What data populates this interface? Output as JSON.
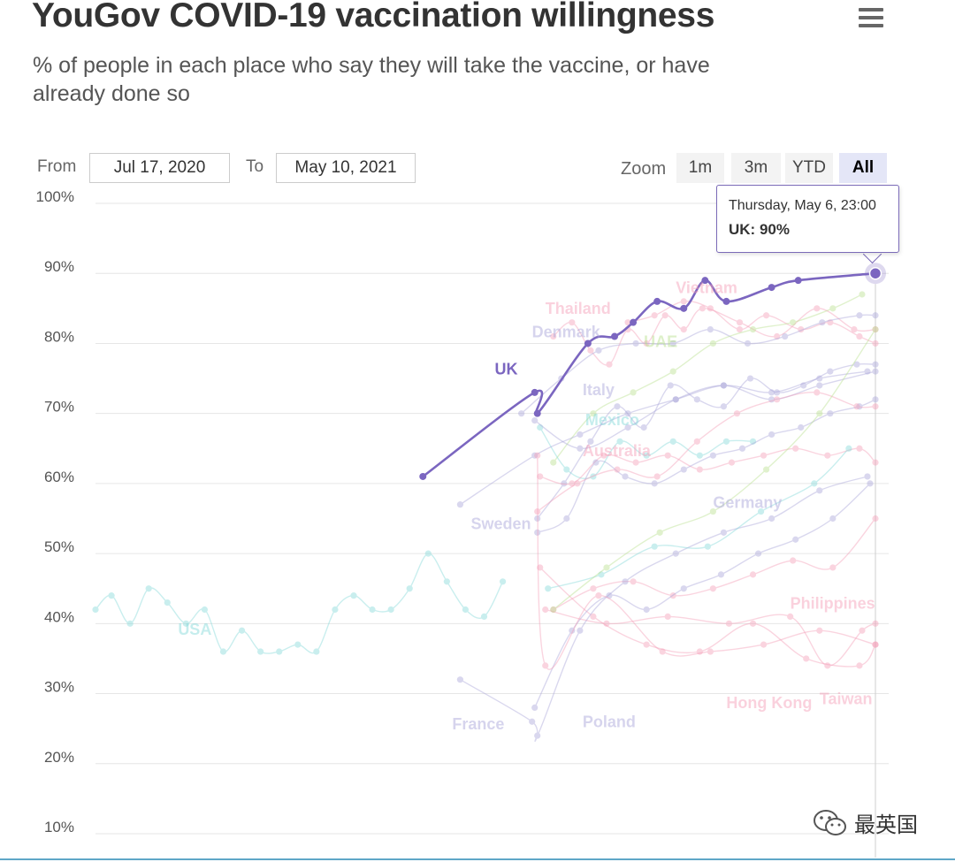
{
  "header": {
    "title": "YouGov COVID-19 vaccination willingness",
    "subtitle": "% of people in each place who say they will take the vaccine, or have already done so"
  },
  "range": {
    "from_label": "From",
    "from_value": "Jul 17, 2020",
    "to_label": "To",
    "to_value": "May 10, 2021"
  },
  "zoom": {
    "label": "Zoom",
    "options": [
      "1m",
      "3m",
      "YTD",
      "All"
    ],
    "active": "All"
  },
  "tooltip": {
    "time": "Thursday, May 6, 23:00",
    "value": "UK: 90%"
  },
  "watermark": {
    "text": "最英国"
  },
  "colors": {
    "highlight": "#7b66c0",
    "grid": "#e6e6e6",
    "teal": "#7fd8d8",
    "lavender": "#a6a2d8",
    "pink": "#f49bb5",
    "green": "#b6e08a"
  },
  "chart_data": {
    "type": "line",
    "title": "YouGov COVID-19 vaccination willingness",
    "subtitle": "% of people in each place who say they will take the vaccine, or have already done so",
    "ylabel": "",
    "ylim": [
      10,
      100
    ],
    "y_ticks": [
      "10%",
      "20%",
      "30%",
      "40%",
      "50%",
      "60%",
      "70%",
      "80%",
      "90%",
      "100%"
    ],
    "x_range": [
      "2020-07-17",
      "2021-05-10"
    ],
    "highlighted": "UK",
    "series": [
      {
        "name": "UK",
        "highlight": true,
        "color": "#7b66c0",
        "x": [
          "2020-11-17",
          "2020-12-29",
          "2020-12-30",
          "2021-01-18",
          "2021-01-28",
          "2021-02-04",
          "2021-02-13",
          "2021-02-23",
          "2021-03-03",
          "2021-03-11",
          "2021-03-28",
          "2021-04-07",
          "2021-05-06"
        ],
        "values": [
          61,
          73,
          70,
          80,
          81,
          83,
          86,
          85,
          89,
          86,
          88,
          89,
          90
        ]
      },
      {
        "name": "USA",
        "color": "#7fd8d8",
        "x": [
          "2020-07-17",
          "2020-07-23",
          "2020-07-30",
          "2020-08-06",
          "2020-08-13",
          "2020-08-20",
          "2020-08-27",
          "2020-09-03",
          "2020-09-10",
          "2020-09-17",
          "2020-09-24",
          "2020-10-01",
          "2020-10-08",
          "2020-10-15",
          "2020-10-22",
          "2020-10-29",
          "2020-11-05",
          "2020-11-12",
          "2020-11-19",
          "2020-11-26",
          "2020-12-03",
          "2020-12-10",
          "2020-12-17"
        ],
        "values": [
          42,
          44,
          40,
          45,
          43,
          40,
          42,
          36,
          39,
          36,
          36,
          37,
          36,
          42,
          44,
          42,
          42,
          45,
          50,
          46,
          42,
          41,
          46
        ]
      },
      {
        "name": "Thailand",
        "color": "#f49bb5",
        "x": [
          "2021-01-05",
          "2021-01-12",
          "2021-01-19",
          "2021-01-26",
          "2021-02-02",
          "2021-02-09",
          "2021-02-16",
          "2021-02-23",
          "2021-03-02",
          "2021-03-16",
          "2021-03-30",
          "2021-04-14",
          "2021-04-28",
          "2021-05-06"
        ],
        "values": [
          81,
          83,
          79,
          77,
          82,
          80,
          84,
          82,
          85,
          83,
          81,
          85,
          82,
          82
        ]
      },
      {
        "name": "Vietnam",
        "color": "#f49bb5",
        "x": [
          "2021-02-02",
          "2021-02-12",
          "2021-02-23",
          "2021-03-05",
          "2021-03-16",
          "2021-03-26",
          "2021-04-08",
          "2021-04-19",
          "2021-04-30",
          "2021-05-06"
        ],
        "values": [
          83,
          84,
          86,
          85,
          82,
          84,
          82,
          83,
          81,
          80
        ]
      },
      {
        "name": "Denmark",
        "color": "#a6a2d8",
        "x": [
          "2020-12-24",
          "2021-01-08",
          "2021-01-22",
          "2021-02-05",
          "2021-02-19",
          "2021-03-05",
          "2021-03-19",
          "2021-04-02",
          "2021-04-16",
          "2021-04-30",
          "2021-05-06"
        ],
        "values": [
          70,
          75,
          79,
          80,
          80,
          82,
          80,
          81,
          83,
          84,
          84
        ]
      },
      {
        "name": "UAE",
        "color": "#b6e08a",
        "x": [
          "2021-01-05",
          "2021-01-20",
          "2021-02-04",
          "2021-02-19",
          "2021-03-06",
          "2021-03-21",
          "2021-04-05",
          "2021-04-20",
          "2021-05-01"
        ],
        "values": [
          63,
          70,
          73,
          76,
          80,
          82,
          83,
          85,
          87
        ]
      },
      {
        "name": "Italy",
        "color": "#a6a2d8",
        "x": [
          "2020-12-30",
          "2021-01-09",
          "2021-01-19",
          "2021-01-29",
          "2021-02-08",
          "2021-02-18",
          "2021-02-28",
          "2021-03-10",
          "2021-03-20",
          "2021-03-30",
          "2021-04-09",
          "2021-04-19",
          "2021-04-29",
          "2021-05-06"
        ],
        "values": [
          55,
          60,
          66,
          71,
          68,
          74,
          72,
          71,
          75,
          73,
          74,
          76,
          77,
          77
        ]
      },
      {
        "name": "Mexico",
        "color": "#7fd8d8",
        "x": [
          "2020-12-31",
          "2021-01-10",
          "2021-01-20",
          "2021-01-30",
          "2021-02-09",
          "2021-02-19",
          "2021-03-01",
          "2021-03-11",
          "2021-03-21"
        ],
        "values": [
          68,
          62,
          61,
          66,
          64,
          66,
          64,
          66,
          66
        ]
      },
      {
        "name": "Australia",
        "color": "#f49bb5",
        "x": [
          "2020-12-31",
          "2021-01-12",
          "2021-01-24",
          "2021-02-05",
          "2021-02-17",
          "2021-03-01",
          "2021-03-13",
          "2021-03-25",
          "2021-04-06",
          "2021-04-18",
          "2021-04-30",
          "2021-05-06"
        ],
        "values": [
          61,
          60,
          64,
          63,
          64,
          62,
          63,
          64,
          65,
          64,
          65,
          63
        ]
      },
      {
        "name": "Germany",
        "color": "#a6a2d8",
        "x": [
          "2020-12-30",
          "2021-01-10",
          "2021-01-21",
          "2021-02-01",
          "2021-02-12",
          "2021-02-23",
          "2021-03-06",
          "2021-03-17",
          "2021-03-28",
          "2021-04-08",
          "2021-04-19",
          "2021-04-30",
          "2021-05-06"
        ],
        "values": [
          53,
          55,
          63,
          61,
          60,
          62,
          64,
          65,
          67,
          68,
          70,
          71,
          72
        ]
      },
      {
        "name": "Sweden",
        "color": "#a6a2d8",
        "x": [
          "2020-12-01",
          "2020-12-29",
          "2021-01-15",
          "2021-02-02",
          "2021-02-20",
          "2021-03-10",
          "2021-03-28",
          "2021-04-15",
          "2021-05-03"
        ],
        "values": [
          57,
          64,
          67,
          70,
          72,
          74,
          73,
          75,
          76
        ]
      },
      {
        "name": "Philippines",
        "color": "#f49bb5",
        "x": [
          "2021-01-05",
          "2021-01-20",
          "2021-02-04",
          "2021-02-19",
          "2021-03-06",
          "2021-03-21",
          "2021-04-05",
          "2021-04-20",
          "2021-05-06"
        ],
        "values": [
          42,
          45,
          46,
          44,
          45,
          47,
          49,
          48,
          55
        ]
      },
      {
        "name": "Hong Kong",
        "color": "#f49bb5",
        "x": [
          "2020-12-31",
          "2021-01-20",
          "2021-02-09",
          "2021-03-01",
          "2021-03-21",
          "2021-04-10",
          "2021-04-30",
          "2021-05-06"
        ],
        "values": [
          48,
          41,
          37,
          36,
          40,
          35,
          34,
          37
        ]
      },
      {
        "name": "Taiwan",
        "color": "#f49bb5",
        "x": [
          "2021-01-02",
          "2021-01-25",
          "2021-02-17",
          "2021-03-12",
          "2021-04-04",
          "2021-04-18",
          "2021-05-01",
          "2021-05-06"
        ],
        "values": [
          42,
          40,
          41,
          40,
          41,
          34,
          39,
          40
        ]
      },
      {
        "name": "France",
        "color": "#a6a2d8",
        "x": [
          "2020-12-01",
          "2020-12-28",
          "2020-12-30",
          "2021-01-15",
          "2021-02-01",
          "2021-02-20",
          "2021-03-10",
          "2021-03-28",
          "2021-04-15",
          "2021-05-03"
        ],
        "values": [
          32,
          26,
          24,
          39,
          46,
          50,
          53,
          55,
          59,
          61
        ]
      },
      {
        "name": "Poland",
        "color": "#a6a2d8",
        "x": [
          "2020-12-29",
          "2021-01-12",
          "2021-01-26",
          "2021-02-09",
          "2021-02-23",
          "2021-03-09",
          "2021-03-23",
          "2021-04-06",
          "2021-04-20",
          "2021-05-04"
        ],
        "values": [
          28,
          39,
          44,
          42,
          45,
          47,
          50,
          52,
          55,
          60
        ]
      },
      {
        "name": "",
        "color": "#f49bb5",
        "x": [
          "2020-12-30",
          "2021-01-02",
          "2021-01-22",
          "2021-02-15",
          "2021-03-05",
          "2021-03-25",
          "2021-04-15",
          "2021-05-06"
        ],
        "values": [
          64,
          34,
          44,
          36,
          36,
          37,
          39,
          37
        ]
      },
      {
        "name": "",
        "color": "#a6a2d8",
        "x": [
          "2020-12-29",
          "2021-01-15",
          "2021-02-02",
          "2021-02-20",
          "2021-03-10",
          "2021-03-28",
          "2021-04-15",
          "2021-05-06"
        ],
        "values": [
          69,
          65,
          68,
          72,
          74,
          72,
          74,
          76
        ]
      },
      {
        "name": "",
        "color": "#f49bb5",
        "x": [
          "2020-12-30",
          "2021-01-14",
          "2021-01-29",
          "2021-02-13",
          "2021-02-28",
          "2021-03-15",
          "2021-03-30",
          "2021-04-14",
          "2021-04-29",
          "2021-05-06"
        ],
        "values": [
          56,
          60,
          62,
          61,
          66,
          70,
          72,
          73,
          71,
          71
        ]
      },
      {
        "name": "",
        "color": "#7fd8d8",
        "x": [
          "2021-01-03",
          "2021-01-23",
          "2021-02-12",
          "2021-03-04",
          "2021-03-24",
          "2021-04-13",
          "2021-04-26"
        ],
        "values": [
          45,
          47,
          51,
          51,
          56,
          60,
          65
        ]
      },
      {
        "name": "",
        "color": "#b6e08a",
        "x": [
          "2021-01-05",
          "2021-01-25",
          "2021-02-14",
          "2021-03-06",
          "2021-03-26",
          "2021-04-15",
          "2021-05-06"
        ],
        "values": [
          42,
          48,
          53,
          56,
          62,
          70,
          82
        ]
      }
    ],
    "labels": [
      {
        "text": "UK",
        "series": "UK",
        "x": "2020-12-14",
        "y": 75.6
      },
      {
        "text": "USA",
        "series": "USA",
        "x": "2020-08-17",
        "y": 38.4
      },
      {
        "text": "Thailand",
        "series": "Thailand",
        "x": "2021-01-02",
        "y": 84.2
      },
      {
        "text": "Vietnam",
        "series": "Vietnam",
        "x": "2021-02-20",
        "y": 87.2
      },
      {
        "text": "Denmark",
        "series": "Denmark",
        "x": "2020-12-28",
        "y": 80.9
      },
      {
        "text": "UAE",
        "series": "UAE",
        "x": "2021-02-08",
        "y": 79.5
      },
      {
        "text": "Italy",
        "series": "Italy",
        "x": "2021-01-16",
        "y": 72.6
      },
      {
        "text": "Mexico",
        "series": "Mexico",
        "x": "2021-01-17",
        "y": 68.3
      },
      {
        "text": "Australia",
        "series": "Australia",
        "x": "2021-01-16",
        "y": 63.9
      },
      {
        "text": "Germany",
        "series": "Germany",
        "x": "2021-03-06",
        "y": 56.5
      },
      {
        "text": "Sweden",
        "series": "Sweden",
        "x": "2020-12-05",
        "y": 53.5
      },
      {
        "text": "Philippines",
        "series": "Philippines",
        "x": "2021-04-04",
        "y": 42.1
      },
      {
        "text": "Hong Kong",
        "series": "Hong Kong",
        "x": "2021-03-11",
        "y": 27.9
      },
      {
        "text": "Taiwan",
        "series": "Taiwan",
        "x": "2021-04-15",
        "y": 28.5
      },
      {
        "text": "France",
        "series": "France",
        "x": "2020-11-28",
        "y": 24.9
      },
      {
        "text": "Poland",
        "series": "Poland",
        "x": "2021-01-16",
        "y": 25.2
      }
    ],
    "hover": {
      "series": "UK",
      "x": "2021-05-06",
      "value": 90
    }
  }
}
